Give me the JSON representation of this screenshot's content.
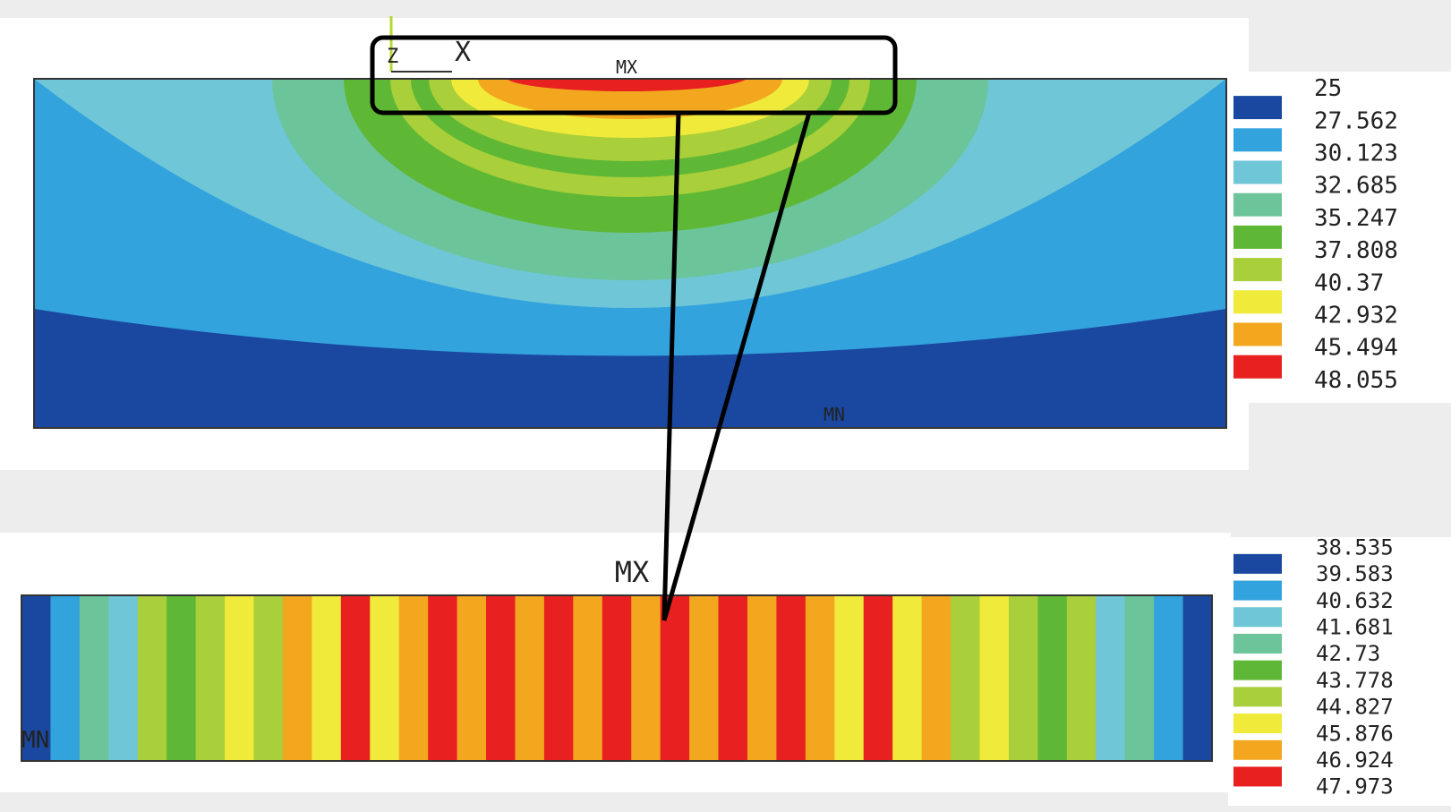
{
  "top_plot": {
    "max_label": "MX",
    "min_label": "MN",
    "axis_x_label": "X",
    "axis_z_label": "Z",
    "legend": {
      "values": [
        "25",
        "27.562",
        "30.123",
        "32.685",
        "35.247",
        "37.808",
        "40.37",
        "42.932",
        "45.494",
        "48.055"
      ],
      "colors": [
        "#1a48a0",
        "#33a3de",
        "#6ec6d6",
        "#6cc49a",
        "#5fb835",
        "#a9cf3a",
        "#f0ea3a",
        "#f2a71f",
        "#e8201f"
      ]
    }
  },
  "bottom_plot": {
    "max_label": "MX",
    "min_label": "MN",
    "legend": {
      "values": [
        "38.535",
        "39.583",
        "40.632",
        "41.681",
        "42.73",
        "43.778",
        "44.827",
        "45.876",
        "46.924",
        "47.973"
      ],
      "colors": [
        "#1a48a0",
        "#33a3de",
        "#6ec6d6",
        "#6cc49a",
        "#5fb835",
        "#a9cf3a",
        "#f0ea3a",
        "#f2a71f",
        "#e8201f"
      ]
    },
    "stripe_colors": [
      "#1a48a0",
      "#33a3de",
      "#6cc49a",
      "#6ec6d6",
      "#a9cf3a",
      "#5fb835",
      "#a9cf3a",
      "#f0ea3a",
      "#a9cf3a",
      "#f2a71f",
      "#f0ea3a",
      "#e8201f",
      "#f0ea3a",
      "#f2a71f",
      "#e8201f",
      "#f2a71f",
      "#e8201f",
      "#f2a71f",
      "#e8201f",
      "#f2a71f",
      "#e8201f",
      "#f2a71f",
      "#e8201f",
      "#f2a71f",
      "#e8201f",
      "#f2a71f",
      "#e8201f",
      "#f2a71f",
      "#f0ea3a",
      "#e8201f",
      "#f0ea3a",
      "#f2a71f",
      "#a9cf3a",
      "#f0ea3a",
      "#a9cf3a",
      "#5fb835",
      "#a9cf3a",
      "#6ec6d6",
      "#6cc49a",
      "#33a3de",
      "#1a48a0"
    ]
  }
}
